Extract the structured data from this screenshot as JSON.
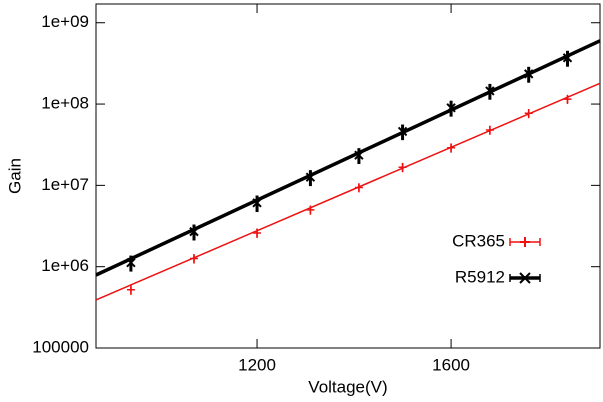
{
  "chart_data": {
    "type": "scatter",
    "xlabel": "Voltage(V)",
    "ylabel": "Gain",
    "yscale": "log",
    "xlim": [
      868,
      1907
    ],
    "ylim": [
      100000,
      1700000000
    ],
    "xticks": [
      1200,
      1600
    ],
    "yticks": [
      100000,
      {
        "value": 1000000,
        "label": "1e+06"
      },
      {
        "value": 10000000,
        "label": "1e+07"
      },
      {
        "value": 100000000,
        "label": "1e+08"
      },
      {
        "value": 1000000000,
        "label": "1e+09"
      }
    ],
    "legend": "right",
    "x": [
      940,
      1070,
      1200,
      1310,
      1410,
      1500,
      1600,
      1680,
      1760,
      1840
    ],
    "series": [
      {
        "name": "CR365",
        "color": "#ee1111",
        "marker": "plus",
        "values": [
          520000,
          1260000,
          2600000,
          5000000,
          9400000,
          16700000,
          29000000,
          48000000,
          77000000,
          115000000
        ],
        "errors": [
          70000,
          170000,
          350000,
          650000,
          1200000,
          2200000,
          3800000,
          6200000,
          10000000,
          15000000
        ],
        "fit": [
          390000,
          180000000
        ]
      },
      {
        "name": "R5912",
        "color": "#000000",
        "marker": "cross",
        "values": [
          1120000,
          2700000,
          6100000,
          12600000,
          23500000,
          46000000,
          90000000,
          145000000,
          235000000,
          370000000
        ],
        "errors": [
          250000,
          600000,
          1400000,
          2800000,
          5200000,
          10000000,
          20000000,
          32000000,
          52000000,
          82000000
        ],
        "fit": [
          790000,
          600000000
        ]
      }
    ]
  }
}
